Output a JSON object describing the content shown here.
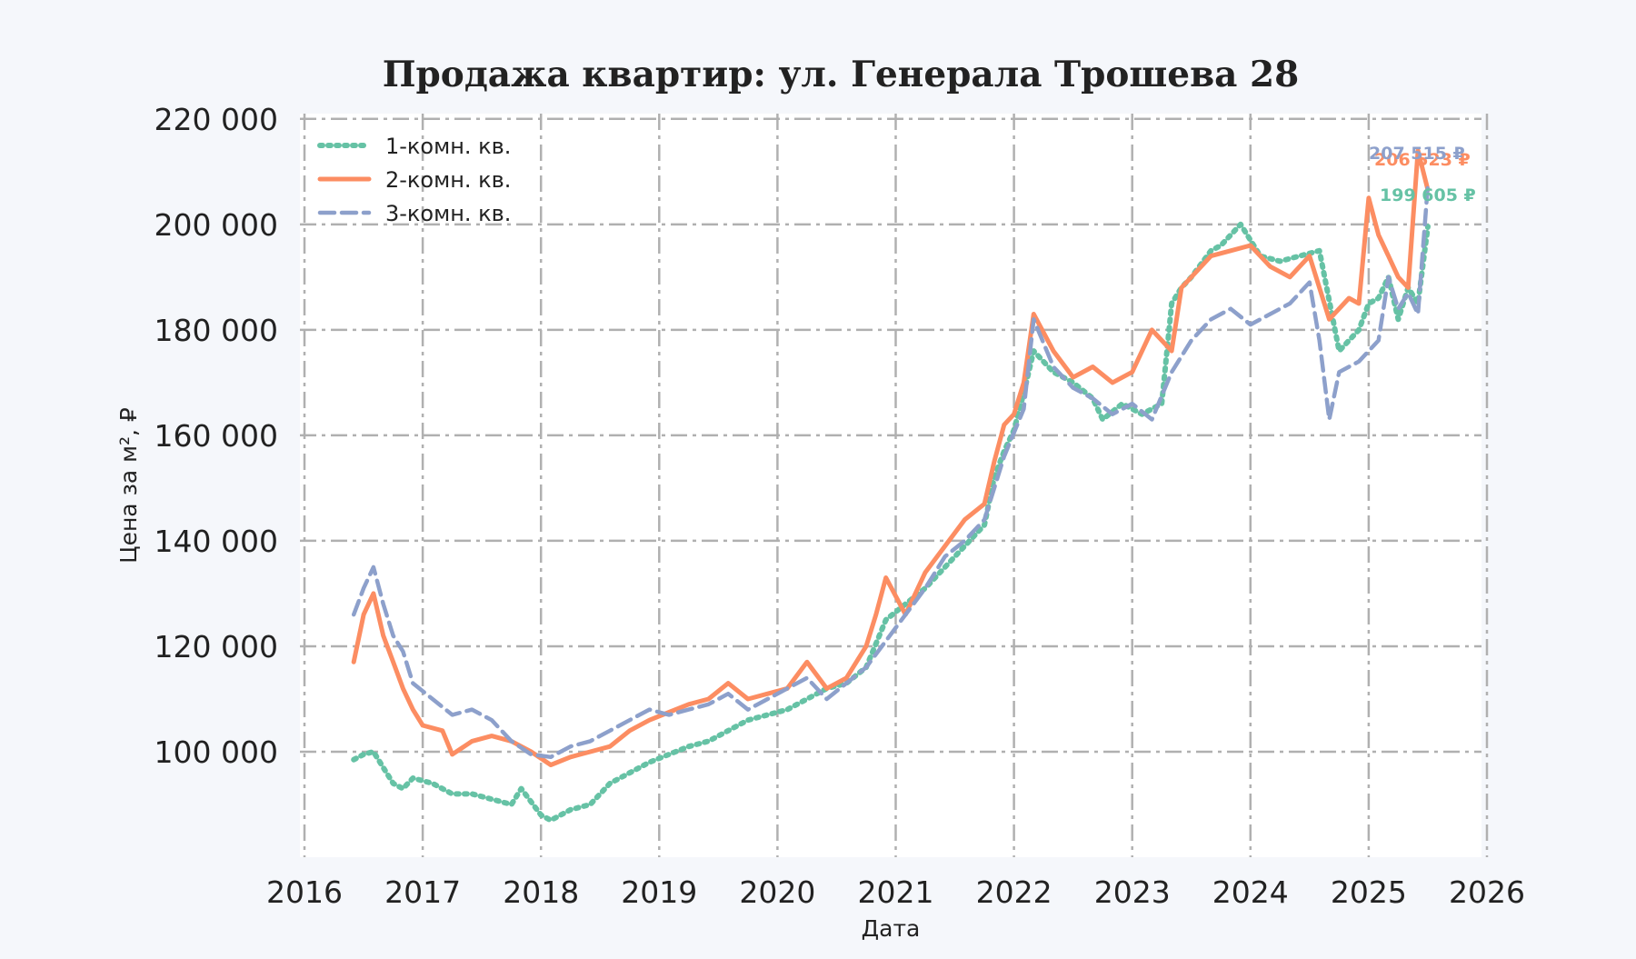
{
  "colors": {
    "background": "#f5f7fb",
    "plot_background": "#ffffff",
    "grid": "#b0b0b0",
    "one_room": "#66c2a5",
    "two_room": "#fc8d62",
    "three_room": "#8da0cb"
  },
  "chart_data": {
    "type": "line",
    "title": "Продажа квартир: ул. Генерала Трошева 28",
    "xlabel": "Дата",
    "ylabel": "Цена за м², ₽",
    "xlim": [
      2016,
      2026
    ],
    "ylim": [
      80000,
      221000
    ],
    "x_ticks": [
      "2016",
      "2017",
      "2018",
      "2019",
      "2020",
      "2021",
      "2022",
      "2023",
      "2024",
      "2025",
      "2026"
    ],
    "y_ticks": [
      "100 000",
      "120 000",
      "140 000",
      "160 000",
      "180 000",
      "200 000",
      "220 000"
    ],
    "y_tick_values": [
      100000,
      120000,
      140000,
      160000,
      180000,
      200000,
      220000
    ],
    "grid": true,
    "legend_position": "top-left",
    "series": [
      {
        "name": "1-комн. кв.",
        "style": "dotted",
        "color": "#66c2a5",
        "end_label": "199 605 ₽",
        "x": [
          "2016-06",
          "2016-07",
          "2016-08",
          "2016-09",
          "2016-10",
          "2016-11",
          "2016-12",
          "2017-02",
          "2017-04",
          "2017-06",
          "2017-08",
          "2017-10",
          "2017-11",
          "2018-01",
          "2018-02",
          "2018-04",
          "2018-06",
          "2018-08",
          "2018-10",
          "2018-12",
          "2019-02",
          "2019-04",
          "2019-06",
          "2019-08",
          "2019-10",
          "2019-12",
          "2020-02",
          "2020-04",
          "2020-06",
          "2020-08",
          "2020-10",
          "2020-12",
          "2021-02",
          "2021-04",
          "2021-06",
          "2021-08",
          "2021-10",
          "2021-11",
          "2021-12",
          "2022-01",
          "2022-02",
          "2022-03",
          "2022-04",
          "2022-05",
          "2022-07",
          "2022-09",
          "2022-10",
          "2022-12",
          "2023-02",
          "2023-04",
          "2023-05",
          "2023-06",
          "2023-07",
          "2023-09",
          "2023-10",
          "2023-12",
          "2024-02",
          "2024-04",
          "2024-06",
          "2024-08",
          "2024-10",
          "2024-12",
          "2025-01",
          "2025-02",
          "2025-03",
          "2025-04",
          "2025-05",
          "2025-06",
          "2025-07"
        ],
        "values": [
          98500,
          99500,
          100000,
          97000,
          94000,
          93000,
          95000,
          94000,
          92000,
          92000,
          91000,
          90000,
          93000,
          88000,
          87000,
          89000,
          90000,
          94000,
          96000,
          98000,
          99500,
          101000,
          102000,
          104000,
          106000,
          107000,
          108000,
          110000,
          112000,
          113000,
          116000,
          125000,
          128000,
          131000,
          135000,
          139000,
          143000,
          152000,
          157000,
          161000,
          168000,
          176000,
          174000,
          172000,
          170000,
          167000,
          163000,
          166000,
          164000,
          166000,
          185000,
          188000,
          190000,
          195000,
          196000,
          200000,
          194000,
          193000,
          194000,
          195000,
          176000,
          180000,
          185000,
          186000,
          190000,
          182000,
          188000,
          185000,
          199605
        ]
      },
      {
        "name": "2-комн. кв.",
        "style": "solid",
        "color": "#fc8d62",
        "end_label": "206 523 ₽",
        "x": [
          "2016-06",
          "2016-07",
          "2016-08",
          "2016-09",
          "2016-10",
          "2016-11",
          "2016-12",
          "2017-01",
          "2017-03",
          "2017-04",
          "2017-06",
          "2017-08",
          "2017-10",
          "2017-12",
          "2018-02",
          "2018-04",
          "2018-06",
          "2018-08",
          "2018-10",
          "2018-12",
          "2019-02",
          "2019-04",
          "2019-06",
          "2019-08",
          "2019-10",
          "2019-12",
          "2020-02",
          "2020-04",
          "2020-06",
          "2020-08",
          "2020-10",
          "2020-11",
          "2020-12",
          "2021-02",
          "2021-04",
          "2021-06",
          "2021-08",
          "2021-10",
          "2021-11",
          "2021-12",
          "2022-01",
          "2022-02",
          "2022-03",
          "2022-05",
          "2022-07",
          "2022-09",
          "2022-11",
          "2023-01",
          "2023-03",
          "2023-05",
          "2023-06",
          "2023-07",
          "2023-09",
          "2023-11",
          "2024-01",
          "2024-03",
          "2024-05",
          "2024-07",
          "2024-09",
          "2024-11",
          "2024-12",
          "2025-01",
          "2025-02",
          "2025-03",
          "2025-04",
          "2025-05",
          "2025-06",
          "2025-07"
        ],
        "values": [
          117000,
          126000,
          130000,
          122000,
          117000,
          112000,
          108000,
          105000,
          104000,
          99500,
          102000,
          103000,
          102000,
          100000,
          97500,
          99000,
          100000,
          101000,
          104000,
          106000,
          107500,
          109000,
          110000,
          113000,
          110000,
          111000,
          112000,
          117000,
          112000,
          114000,
          120000,
          126000,
          133000,
          126000,
          134000,
          139000,
          144000,
          147000,
          155000,
          162000,
          164000,
          170000,
          183000,
          176000,
          171000,
          173000,
          170000,
          172000,
          180000,
          176000,
          188000,
          190000,
          194000,
          195000,
          196000,
          192000,
          190000,
          194000,
          182000,
          186000,
          185000,
          205000,
          198000,
          194000,
          190000,
          188000,
          214000,
          206523
        ]
      },
      {
        "name": "3-комн. кв.",
        "style": "dashed",
        "color": "#8da0cb",
        "end_label": "207 515 ₽",
        "x": [
          "2016-06",
          "2016-07",
          "2016-08",
          "2016-09",
          "2016-10",
          "2016-11",
          "2016-12",
          "2017-02",
          "2017-04",
          "2017-06",
          "2017-08",
          "2017-10",
          "2017-12",
          "2018-02",
          "2018-04",
          "2018-06",
          "2018-08",
          "2018-10",
          "2018-12",
          "2019-02",
          "2019-04",
          "2019-06",
          "2019-08",
          "2019-10",
          "2019-12",
          "2020-02",
          "2020-04",
          "2020-06",
          "2020-08",
          "2020-10",
          "2020-12",
          "2021-02",
          "2021-04",
          "2021-06",
          "2021-08",
          "2021-10",
          "2021-12",
          "2022-02",
          "2022-03",
          "2022-05",
          "2022-07",
          "2022-09",
          "2022-11",
          "2023-01",
          "2023-03",
          "2023-05",
          "2023-07",
          "2023-09",
          "2023-11",
          "2024-01",
          "2024-03",
          "2024-05",
          "2024-07",
          "2024-08",
          "2024-09",
          "2024-10",
          "2024-12",
          "2025-02",
          "2025-03",
          "2025-04",
          "2025-05",
          "2025-06",
          "2025-07"
        ],
        "values": [
          126000,
          131000,
          135000,
          128000,
          122000,
          119000,
          113000,
          110000,
          107000,
          108000,
          106000,
          102000,
          99500,
          99000,
          101000,
          102000,
          104000,
          106000,
          108000,
          107000,
          108000,
          109000,
          111000,
          108000,
          110000,
          112000,
          114000,
          110000,
          113000,
          116000,
          121000,
          126000,
          131000,
          137000,
          140000,
          144000,
          156000,
          165000,
          182000,
          173000,
          169000,
          167000,
          164000,
          166000,
          163000,
          172000,
          178000,
          182000,
          184000,
          181000,
          183000,
          185000,
          189000,
          178000,
          163000,
          172000,
          174000,
          178000,
          190000,
          184000,
          187000,
          183000,
          207515
        ]
      }
    ]
  }
}
